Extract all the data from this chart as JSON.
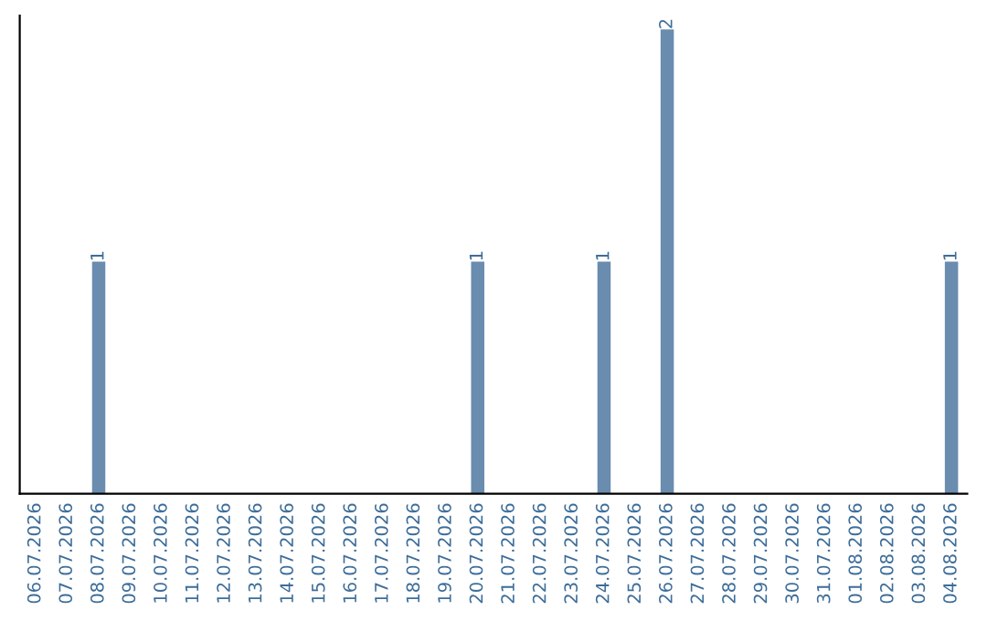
{
  "chart_data": {
    "type": "bar",
    "categories": [
      "06.07.2026",
      "07.07.2026",
      "08.07.2026",
      "09.07.2026",
      "10.07.2026",
      "11.07.2026",
      "12.07.2026",
      "13.07.2026",
      "14.07.2026",
      "15.07.2026",
      "16.07.2026",
      "17.07.2026",
      "18.07.2026",
      "19.07.2026",
      "20.07.2026",
      "21.07.2026",
      "22.07.2026",
      "23.07.2026",
      "24.07.2026",
      "25.07.2026",
      "26.07.2026",
      "27.07.2026",
      "28.07.2026",
      "29.07.2026",
      "30.07.2026",
      "31.07.2026",
      "01.08.2026",
      "02.08.2026",
      "03.08.2026",
      "04.08.2026"
    ],
    "values": [
      0,
      0,
      1,
      0,
      0,
      0,
      0,
      0,
      0,
      0,
      0,
      0,
      0,
      0,
      1,
      0,
      0,
      0,
      1,
      0,
      2,
      0,
      0,
      0,
      0,
      0,
      0,
      0,
      0,
      1
    ],
    "color": "#6a8caf",
    "value_labels": [
      null,
      null,
      "1",
      null,
      null,
      null,
      null,
      null,
      null,
      null,
      null,
      null,
      null,
      null,
      "1",
      null,
      null,
      null,
      "1",
      null,
      "2",
      null,
      null,
      null,
      null,
      null,
      null,
      null,
      null,
      "1"
    ],
    "tick_labels": "x",
    "grid": false,
    "legend": false
  }
}
